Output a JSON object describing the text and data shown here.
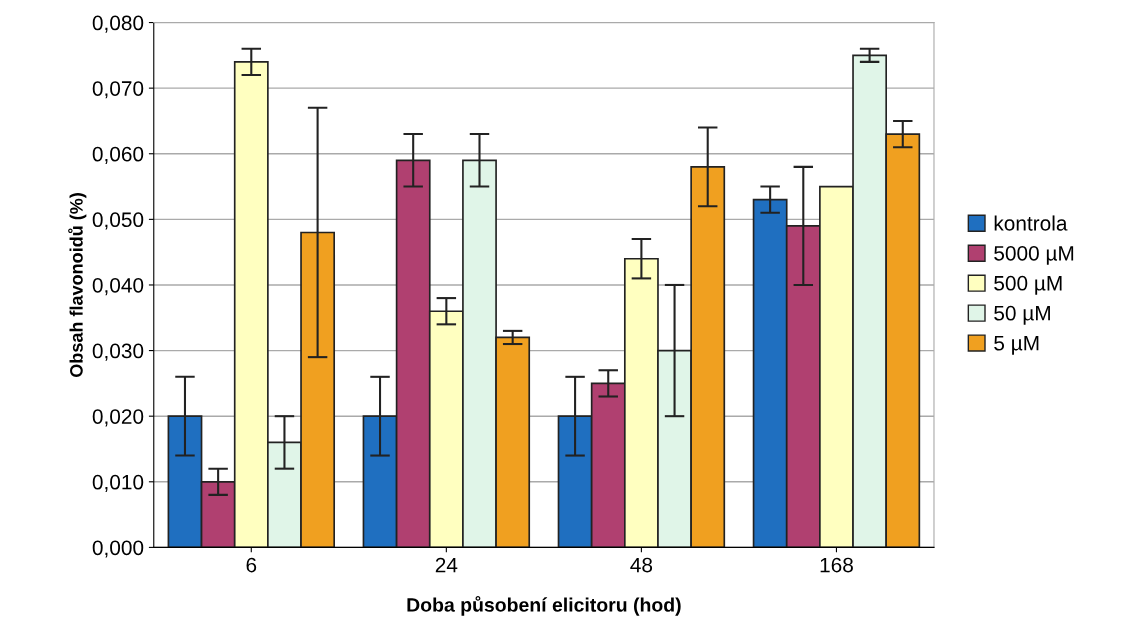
{
  "chart_data": {
    "type": "bar",
    "xlabel": "Doba působení elicitoru (hod)",
    "ylabel": "Obsah flavonoidů (%)",
    "categories": [
      "6",
      "24",
      "48",
      "168"
    ],
    "series": [
      {
        "name": "kontrola",
        "color": "#1f6fc0",
        "values": [
          0.02,
          0.02,
          0.02,
          0.053
        ],
        "errors": [
          0.006,
          0.006,
          0.006,
          0.002
        ]
      },
      {
        "name": "5000 µM",
        "color": "#b04070",
        "values": [
          0.01,
          0.059,
          0.025,
          0.049
        ],
        "errors": [
          0.002,
          0.004,
          0.002,
          0.009
        ]
      },
      {
        "name": "500 µM",
        "color": "#ffffc0",
        "values": [
          0.074,
          0.036,
          0.044,
          0.055
        ],
        "errors": [
          0.002,
          0.002,
          0.003,
          null
        ]
      },
      {
        "name": "50 µM",
        "color": "#e0f5e8",
        "values": [
          0.016,
          0.059,
          0.03,
          0.075
        ],
        "errors": [
          0.004,
          0.004,
          0.01,
          0.001
        ]
      },
      {
        "name": "5 µM",
        "color": "#f0a020",
        "values": [
          0.048,
          0.032,
          0.058,
          0.063
        ],
        "errors": [
          0.019,
          0.001,
          0.006,
          0.002
        ]
      }
    ],
    "ylim": [
      0,
      0.08
    ],
    "yticks": [
      {
        "value": 0,
        "label": "0,000"
      },
      {
        "value": 0.01,
        "label": "0,010"
      },
      {
        "value": 0.02,
        "label": "0,020"
      },
      {
        "value": 0.03,
        "label": "0,030"
      },
      {
        "value": 0.04,
        "label": "0,040"
      },
      {
        "value": 0.05,
        "label": "0,050"
      },
      {
        "value": 0.06,
        "label": "0,060"
      },
      {
        "value": 0.07,
        "label": "0,070"
      },
      {
        "value": 0.08,
        "label": "0,080"
      }
    ],
    "grid": "y",
    "legend": "right"
  }
}
